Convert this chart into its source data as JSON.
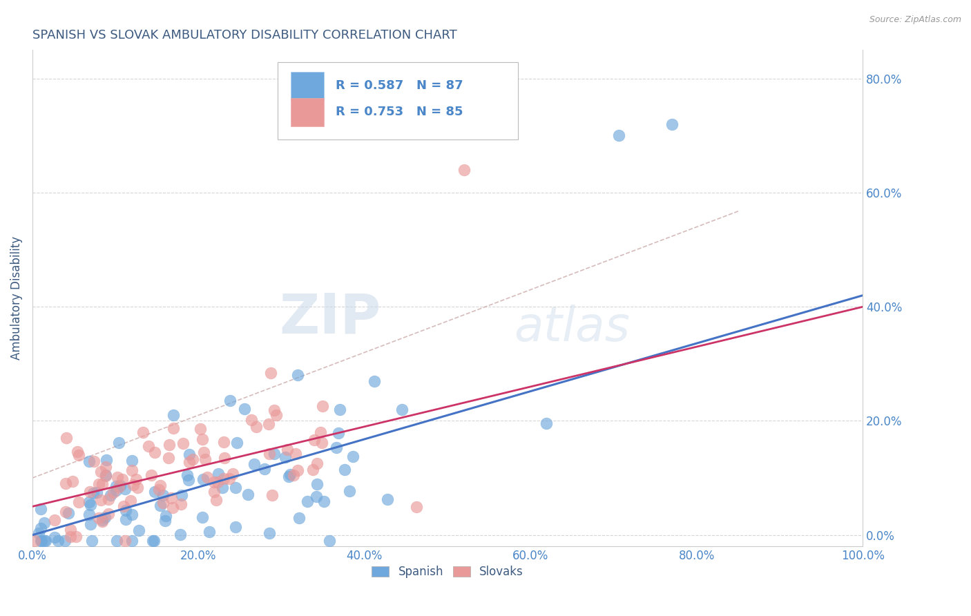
{
  "title": "SPANISH VS SLOVAK AMBULATORY DISABILITY CORRELATION CHART",
  "source": "Source: ZipAtlas.com",
  "xlabel": "",
  "ylabel": "Ambulatory Disability",
  "xlim": [
    0.0,
    1.0
  ],
  "ylim": [
    -0.02,
    0.85
  ],
  "xticks": [
    0.0,
    0.2,
    0.4,
    0.6,
    0.8,
    1.0
  ],
  "xtick_labels": [
    "0.0%",
    "20.0%",
    "40.0%",
    "60.0%",
    "80.0%",
    "100.0%"
  ],
  "yticks": [
    0.0,
    0.2,
    0.4,
    0.6,
    0.8
  ],
  "ytick_labels": [
    "0.0%",
    "20.0%",
    "40.0%",
    "60.0%",
    "80.0%"
  ],
  "spanish_color": "#6fa8dc",
  "slovaks_color": "#ea9999",
  "title_color": "#3d5a80",
  "axis_label_color": "#3d5a80",
  "tick_color": "#4a86c8",
  "legend_r_color": "#4a86c8",
  "background_color": "#ffffff",
  "grid_color": "#bbbbbb",
  "trend_blue": "#4472c4",
  "trend_pink": "#cc3366",
  "trend_gray_dashed": "#ccaaaa",
  "spanish_R": 0.587,
  "spanish_N": 87,
  "slovaks_R": 0.753,
  "slovaks_N": 85,
  "watermark_zip": "ZIP",
  "watermark_atlas": "atlas",
  "spanish_trend_intercept": 0.0,
  "spanish_trend_slope": 0.42,
  "slovaks_trend_intercept": 0.05,
  "slovaks_trend_slope": 0.35,
  "gray_dashed_intercept": 0.1,
  "gray_dashed_slope": 0.55
}
